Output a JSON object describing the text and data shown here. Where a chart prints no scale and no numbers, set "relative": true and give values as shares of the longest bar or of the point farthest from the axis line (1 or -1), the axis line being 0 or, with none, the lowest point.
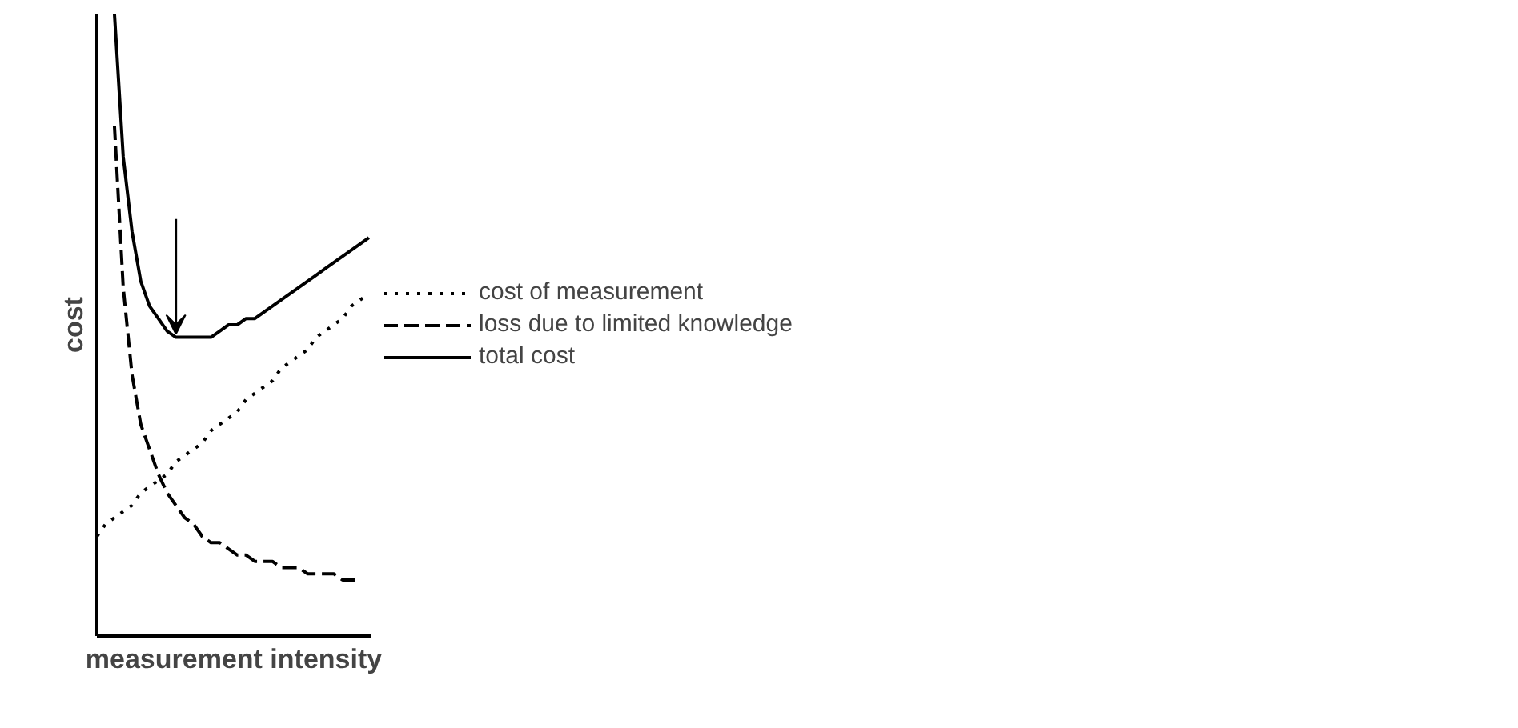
{
  "chart_data": {
    "type": "line",
    "relative": true,
    "xlabel": "measurement intensity",
    "ylabel": "cost",
    "legend": "right",
    "grid": false,
    "categories": [
      null,
      null,
      null,
      null,
      null,
      null,
      null,
      null,
      null,
      null,
      null,
      null,
      null,
      null,
      null,
      null,
      null,
      null,
      null,
      null,
      null,
      null,
      null,
      null,
      null,
      null,
      null,
      null,
      null,
      null,
      null,
      null
    ],
    "series": [
      {
        "name": "cost of measurement",
        "color": "#000000",
        "line_style": "dotted",
        "values": [
          0.16,
          0.18,
          0.19,
          0.2,
          0.21,
          0.23,
          0.24,
          0.25,
          0.26,
          0.28,
          0.29,
          0.3,
          0.31,
          0.33,
          0.34,
          0.35,
          0.36,
          0.38,
          0.39,
          0.4,
          0.41,
          0.43,
          0.44,
          0.45,
          0.46,
          0.48,
          0.49,
          0.5,
          0.51,
          0.53,
          0.54,
          0.55
        ]
      },
      {
        "name": "loss due to limited knowledge",
        "color": "#000000",
        "line_style": "dashed",
        "values": [
          null,
          null,
          0.82,
          0.56,
          0.42,
          0.34,
          0.3,
          0.26,
          0.23,
          0.21,
          0.19,
          0.18,
          0.16,
          0.15,
          0.15,
          0.14,
          0.13,
          0.13,
          0.12,
          0.12,
          0.12,
          0.11,
          0.11,
          0.11,
          0.1,
          0.1,
          0.1,
          0.1,
          0.09,
          0.09,
          0.09,
          null
        ]
      },
      {
        "name": "total cost",
        "color": "#000000",
        "line_style": "solid",
        "values": [
          null,
          null,
          1.0,
          0.77,
          0.65,
          0.57,
          0.53,
          0.51,
          0.49,
          0.48,
          0.48,
          0.48,
          0.48,
          0.48,
          0.49,
          0.5,
          0.5,
          0.51,
          0.51,
          0.52,
          0.53,
          0.54,
          0.55,
          0.56,
          0.57,
          0.58,
          0.59,
          0.6,
          0.61,
          0.62,
          0.63,
          0.64
        ]
      }
    ]
  }
}
